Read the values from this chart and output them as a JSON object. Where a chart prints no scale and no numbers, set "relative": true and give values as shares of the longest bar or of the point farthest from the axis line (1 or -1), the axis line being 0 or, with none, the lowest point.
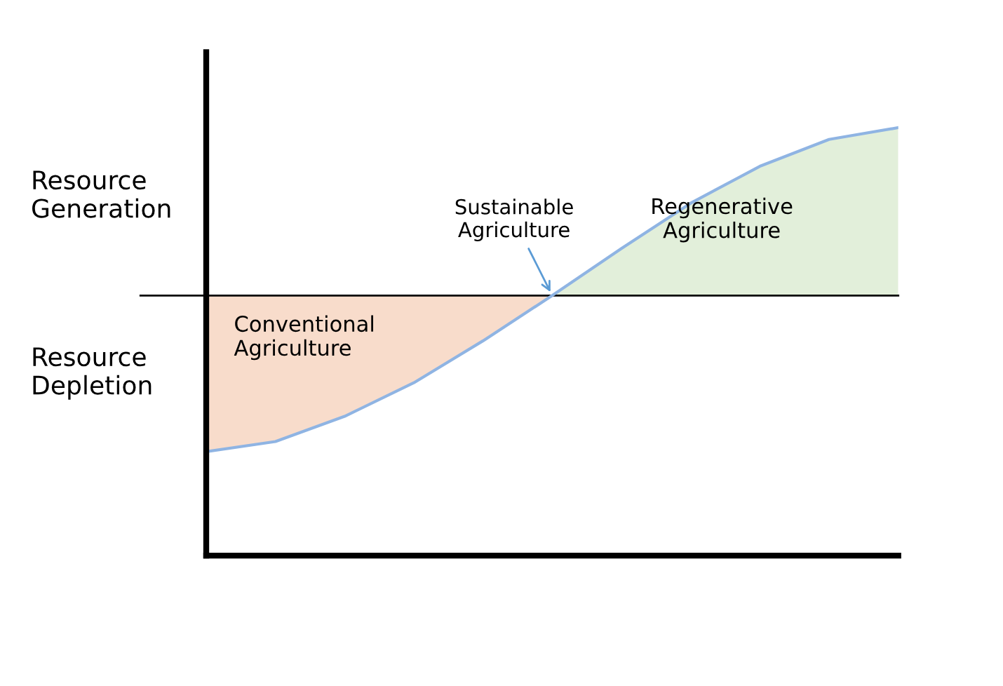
{
  "chart_data": {
    "type": "line",
    "relative": true,
    "categories": [
      null,
      null,
      null,
      null,
      null,
      null,
      null,
      null,
      null,
      null,
      null
    ],
    "series": [
      {
        "type": "area",
        "color": "#f8dccb",
        "values": [
          -0.93,
          -0.87,
          -0.72,
          -0.52,
          -0.27,
          0,
          null,
          null,
          null,
          null,
          null
        ]
      },
      {
        "type": "area",
        "color": "#e2efda",
        "values": [
          null,
          null,
          null,
          null,
          null,
          0,
          0.28,
          0.55,
          0.77,
          0.93,
          1.0
        ]
      },
      {
        "color": "#8fb4e3",
        "values": [
          -0.93,
          -0.87,
          -0.72,
          -0.52,
          -0.27,
          0,
          0.28,
          0.55,
          0.77,
          0.93,
          1.0
        ]
      }
    ],
    "annotations": [
      "Resource\nGeneration",
      "Resource\nDepletion",
      "Conventional\nAgriculture",
      "Sustainable\nAgriculture",
      "Regenerative\nAgriculture"
    ]
  }
}
